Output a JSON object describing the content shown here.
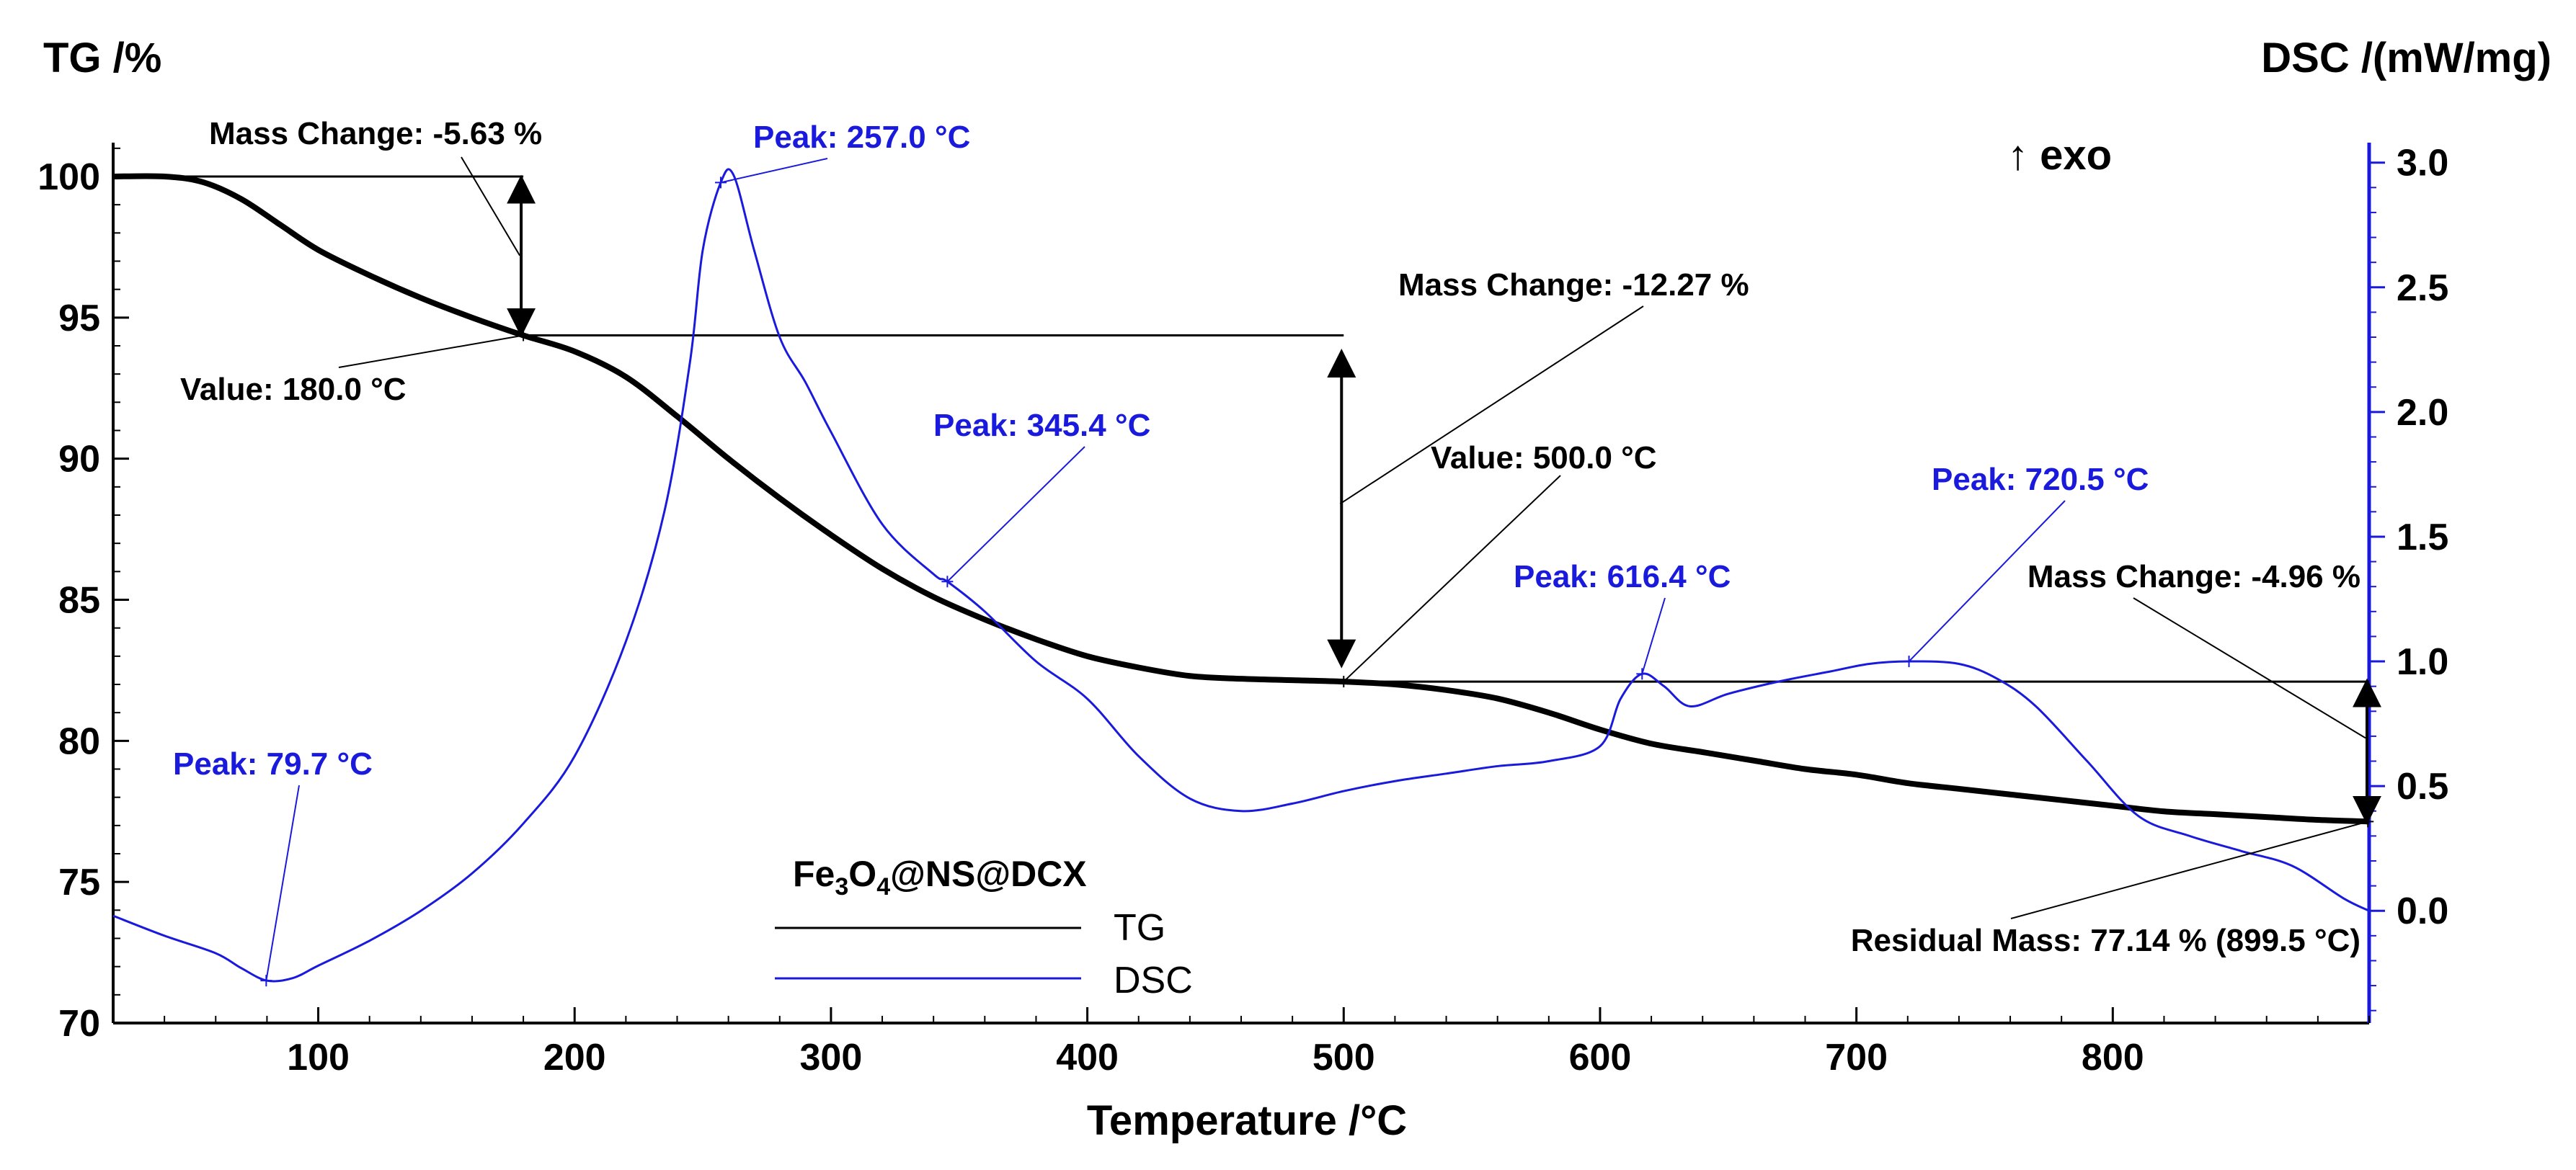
{
  "chart_data": {
    "type": "line",
    "x_axis": {
      "label": "Temperature /°C",
      "range": [
        20,
        900
      ],
      "ticks": [
        100,
        200,
        300,
        400,
        500,
        600,
        700,
        800
      ],
      "minor_step": 20
    },
    "y_axis_left": {
      "label": "TG /%",
      "range": [
        70,
        101.2
      ],
      "ticks": [
        70,
        75,
        80,
        85,
        90,
        95,
        100
      ],
      "minor_step": 1
    },
    "y_axis_right": {
      "label": "DSC /(mW/mg)",
      "range": [
        -0.45,
        3.08
      ],
      "ticks": [
        "0.0",
        "0.5",
        "1.0",
        "1.5",
        "2.0",
        "2.5",
        "3.0"
      ],
      "minor_step": 0.1,
      "color": "#1a1adc"
    },
    "exo_label": "↑ exo",
    "legend": {
      "sample": {
        "base1": "Fe",
        "sub1": "3",
        "base2": "O",
        "sub2": "4",
        "rest": "@NS@DCX"
      },
      "entries": [
        {
          "label": "TG",
          "color": "#000000"
        },
        {
          "label": "DSC",
          "color": "#1a1adc"
        }
      ],
      "position": "bottom-center"
    },
    "series": [
      {
        "name": "TG",
        "axis": "left",
        "color": "#000000",
        "points": [
          [
            20,
            100.0
          ],
          [
            40,
            100.0
          ],
          [
            55,
            99.8
          ],
          [
            70,
            99.2
          ],
          [
            85,
            98.3
          ],
          [
            100,
            97.4
          ],
          [
            120,
            96.5
          ],
          [
            140,
            95.7
          ],
          [
            160,
            95.0
          ],
          [
            180,
            94.37
          ],
          [
            200,
            93.8
          ],
          [
            220,
            92.9
          ],
          [
            240,
            91.5
          ],
          [
            260,
            90.0
          ],
          [
            280,
            88.6
          ],
          [
            300,
            87.3
          ],
          [
            320,
            86.1
          ],
          [
            340,
            85.1
          ],
          [
            360,
            84.3
          ],
          [
            380,
            83.6
          ],
          [
            400,
            83.0
          ],
          [
            420,
            82.6
          ],
          [
            440,
            82.3
          ],
          [
            460,
            82.2
          ],
          [
            480,
            82.15
          ],
          [
            500,
            82.1
          ],
          [
            520,
            82.0
          ],
          [
            540,
            81.8
          ],
          [
            560,
            81.5
          ],
          [
            580,
            81.0
          ],
          [
            600,
            80.4
          ],
          [
            620,
            79.9
          ],
          [
            640,
            79.6
          ],
          [
            660,
            79.3
          ],
          [
            680,
            79.0
          ],
          [
            700,
            78.8
          ],
          [
            720,
            78.5
          ],
          [
            740,
            78.3
          ],
          [
            760,
            78.1
          ],
          [
            780,
            77.9
          ],
          [
            800,
            77.7
          ],
          [
            820,
            77.5
          ],
          [
            840,
            77.4
          ],
          [
            860,
            77.3
          ],
          [
            880,
            77.2
          ],
          [
            900,
            77.14
          ]
        ]
      },
      {
        "name": "DSC",
        "axis": "right",
        "color": "#1a1adc",
        "points": [
          [
            20,
            -0.02
          ],
          [
            40,
            -0.1
          ],
          [
            60,
            -0.17
          ],
          [
            70,
            -0.23
          ],
          [
            80,
            -0.28
          ],
          [
            90,
            -0.27
          ],
          [
            100,
            -0.22
          ],
          [
            120,
            -0.12
          ],
          [
            140,
            0.0
          ],
          [
            160,
            0.15
          ],
          [
            180,
            0.35
          ],
          [
            200,
            0.62
          ],
          [
            220,
            1.08
          ],
          [
            235,
            1.6
          ],
          [
            245,
            2.2
          ],
          [
            250,
            2.65
          ],
          [
            257,
            2.92
          ],
          [
            262,
            2.95
          ],
          [
            270,
            2.65
          ],
          [
            280,
            2.3
          ],
          [
            290,
            2.12
          ],
          [
            300,
            1.92
          ],
          [
            320,
            1.55
          ],
          [
            340,
            1.35
          ],
          [
            345.4,
            1.32
          ],
          [
            360,
            1.2
          ],
          [
            380,
            1.0
          ],
          [
            400,
            0.85
          ],
          [
            420,
            0.62
          ],
          [
            440,
            0.45
          ],
          [
            460,
            0.4
          ],
          [
            480,
            0.43
          ],
          [
            500,
            0.48
          ],
          [
            520,
            0.52
          ],
          [
            540,
            0.55
          ],
          [
            560,
            0.58
          ],
          [
            580,
            0.6
          ],
          [
            600,
            0.66
          ],
          [
            608,
            0.85
          ],
          [
            616.4,
            0.95
          ],
          [
            625,
            0.9
          ],
          [
            635,
            0.82
          ],
          [
            650,
            0.87
          ],
          [
            670,
            0.92
          ],
          [
            690,
            0.96
          ],
          [
            705,
            0.99
          ],
          [
            720.5,
            1.0
          ],
          [
            740,
            0.99
          ],
          [
            755,
            0.93
          ],
          [
            770,
            0.82
          ],
          [
            790,
            0.6
          ],
          [
            810,
            0.38
          ],
          [
            830,
            0.3
          ],
          [
            850,
            0.24
          ],
          [
            870,
            0.18
          ],
          [
            890,
            0.05
          ],
          [
            900,
            0.0
          ]
        ]
      }
    ],
    "peak_annotations": [
      {
        "text": "Peak: 257.0 °C",
        "x": 257.0,
        "y": 2.92,
        "axis": "right",
        "color": "#1a1adc"
      },
      {
        "text": "Peak: 345.4 °C",
        "x": 345.4,
        "y": 1.32,
        "axis": "right",
        "color": "#1a1adc"
      },
      {
        "text": "Peak: 79.7 °C",
        "x": 79.7,
        "y": -0.28,
        "axis": "right",
        "color": "#1a1adc"
      },
      {
        "text": "Peak: 616.4 °C",
        "x": 616.4,
        "y": 0.95,
        "axis": "right",
        "color": "#1a1adc"
      },
      {
        "text": "Peak: 720.5 °C",
        "x": 720.5,
        "y": 1.0,
        "axis": "right",
        "color": "#1a1adc"
      }
    ],
    "tg_annotations": [
      {
        "text": "Mass Change: -5.63 %",
        "x": 180,
        "y": 96.8,
        "axis": "left",
        "color": "#000000"
      },
      {
        "text": "Value: 180.0 °C",
        "x": 180.0,
        "y": 94.37,
        "axis": "left",
        "color": "#000000"
      },
      {
        "text": "Mass Change: -12.27 %",
        "x": 500,
        "y": 88.0,
        "axis": "left",
        "color": "#000000"
      },
      {
        "text": "Value: 500.0 °C",
        "x": 500.0,
        "y": 82.1,
        "axis": "left",
        "color": "#000000"
      },
      {
        "text": "Mass Change: -4.96 %",
        "x": 900,
        "y": 79.5,
        "axis": "left",
        "color": "#000000"
      },
      {
        "text": "Residual Mass: 77.14 % (899.5 °C)",
        "x": 899.5,
        "y": 77.14,
        "axis": "left",
        "color": "#000000"
      }
    ],
    "reference_lines": [
      {
        "y": 100.0,
        "x_from": 20,
        "x_to": 180
      },
      {
        "y": 94.37,
        "x_from": 180,
        "x_to": 500
      },
      {
        "y": 82.1,
        "x_from": 500,
        "x_to": 900
      }
    ],
    "mass_change_arrows": [
      {
        "x": 180,
        "y_from": 100.0,
        "y_to": 94.37
      },
      {
        "x": 500,
        "y_from": 94.37,
        "y_to": 82.1
      },
      {
        "x": 900,
        "y_from": 82.1,
        "y_to": 77.14
      }
    ]
  }
}
